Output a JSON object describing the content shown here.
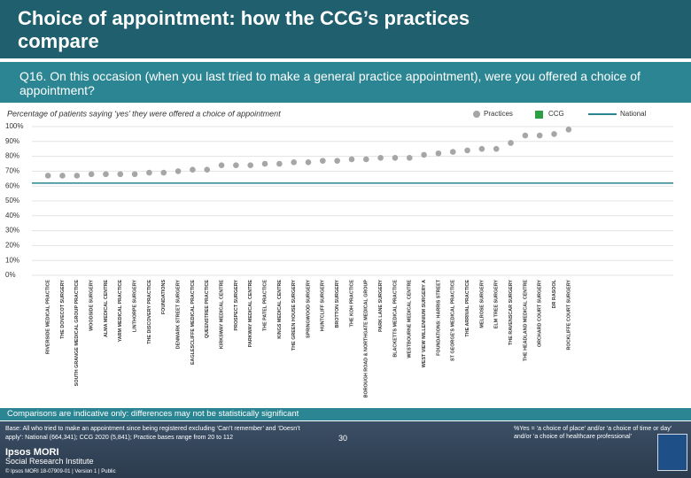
{
  "chart_data": {
    "type": "dot",
    "title": "Choice of appointment: how the CCG’s practices compare",
    "question": "Q16. On this occasion (when you last tried to make a general practice appointment), were you offered a choice of appointment?",
    "subtitle": "Percentage of patients saying ‘yes’ they were offered a choice of appointment",
    "categories": [
      "RIVERSIDE MEDICAL PRACTICE",
      "THE DOVECOT SURGERY",
      "SOUTH GRANGE MEDICAL GROUP PRACTICE",
      "WOODSIDE SURGERY",
      "ALMA MEDICAL CENTRE",
      "YARM MEDICAL PRACTICE",
      "LINTHORPE SURGERY",
      "THE DISCOVERY PRACTICE",
      "FOUNDATIONS",
      "DENMARK STREET SURGERY",
      "EAGLESCLIFFE MEDICAL PRACTICE",
      "QUEENSTREE PRACTICE",
      "KIRKSWAY MEDICAL CENTRE",
      "PROSPECT SURGERY",
      "PARKWAY MEDICAL CENTRE",
      "THE PATEL PRACTICE",
      "KINGS MEDICAL CENTRE",
      "THE GREEN HOUSE SURGERY",
      "SPRINGWOOD SURGERY",
      "HUNTCLIFF SURGERY",
      "BROTTON SURGERY",
      "THE KOH PRACTICE",
      "BOROUGH ROAD & NORTHGATE MEDICAL GROUP",
      "PARK LANE SURGERY",
      "BLACKETTS MEDICAL PRACTICE",
      "WESTBOURNE MEDICAL CENTRE",
      "WEST VIEW MILLENNIUM SURGERY A",
      "FOUNDATIONS: HARRIS STREET",
      "ST GEORGE'S MEDICAL PRACTICE",
      "THE ARRIVAL PRACTICE",
      "MELROSE SURGERY",
      "ELM TREE SURGERY",
      "THE RAVENSCAR SURGERY",
      "THE HEADLAND MEDICAL CENTRE",
      "ORCHARD COURT SURGERY",
      "DR RASOOL",
      "ROCKLIFFE COURT SURGERY"
    ],
    "series": [
      {
        "name": "Practices",
        "color": "#a6a6a6",
        "values": [
          67,
          67,
          67,
          68,
          68,
          68,
          68,
          69,
          69,
          70,
          71,
          71,
          74,
          74,
          74,
          75,
          75,
          76,
          76,
          77,
          77,
          78,
          78,
          79,
          79,
          79,
          81,
          82,
          83,
          84,
          85,
          85,
          89,
          94,
          94,
          95,
          98
        ]
      }
    ],
    "reference_lines": [
      {
        "name": "CCG",
        "value": 62,
        "color": "#2e9e45"
      },
      {
        "name": "National",
        "value": 62,
        "color": "#2b8593"
      }
    ],
    "ylim": [
      0,
      100
    ],
    "yticks": [
      {
        "value": 0,
        "label": "0%"
      },
      {
        "value": 10,
        "label": "10%"
      },
      {
        "value": 20,
        "label": "20%"
      },
      {
        "value": 30,
        "label": "30%"
      },
      {
        "value": 40,
        "label": "40%"
      },
      {
        "value": 50,
        "label": "50%"
      },
      {
        "value": 60,
        "label": "60%"
      },
      {
        "value": 70,
        "label": "70%"
      },
      {
        "value": 80,
        "label": "80%"
      },
      {
        "value": 90,
        "label": "90%"
      },
      {
        "value": 100,
        "label": "100%"
      }
    ],
    "grid": true
  },
  "footer": {
    "comparison_note": "Comparisons are indicative only: differences may not be statistically significant",
    "base": "Base: All who tried to make an appointment since being registered excluding ‘Can’t remember’ and ‘Doesn’t apply’: National (664,341); CCG 2020 (5,841); Practice bases range from 20 to 112",
    "definition": "%Yes = ‘a choice of place’ and/or ‘a choice of time or day’ and/or ‘a choice of healthcare professional’",
    "page_number": "30",
    "org_name": "Ipsos MORI",
    "org_unit": "Social Research Institute",
    "copyright": "© Ipsos MORI    18-07909-01 | Version 1 | Public"
  }
}
